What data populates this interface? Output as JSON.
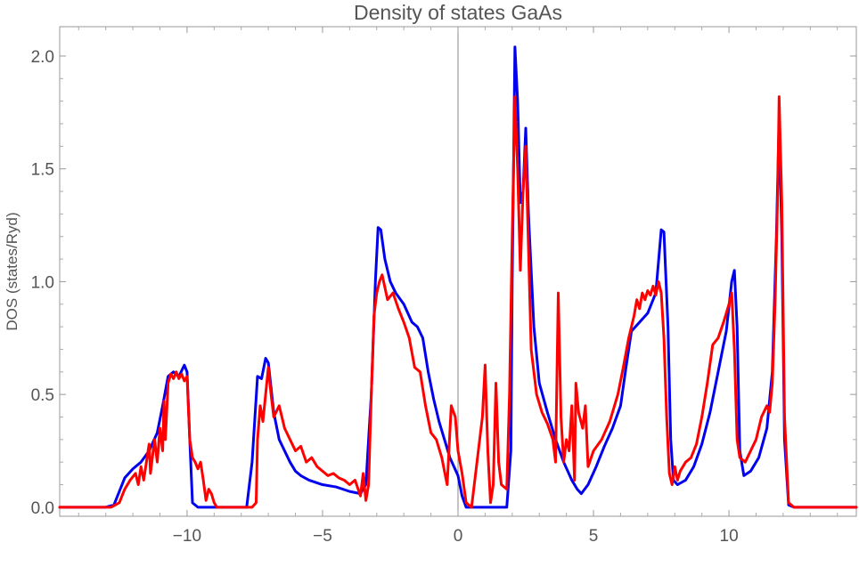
{
  "chart_data": {
    "type": "line",
    "title": "Density of states GaAs",
    "xlabel": "",
    "ylabel": "DOS (states/Ryd)",
    "xlim": [
      -14.7,
      14.7
    ],
    "ylim": [
      -0.04,
      2.13
    ],
    "x_ticks": [
      -10,
      -5,
      0,
      5,
      10
    ],
    "x_tick_labels": [
      "−10",
      "−5",
      "0",
      "5",
      "10"
    ],
    "y_ticks": [
      0.0,
      0.5,
      1.0,
      1.5,
      2.0
    ],
    "y_tick_labels": [
      "0.0",
      "0.5",
      "1.0",
      "1.5",
      "2.0"
    ],
    "grid": false,
    "legend": "none",
    "series": [
      {
        "color": "#0000ee",
        "points": [
          [
            -14.7,
            0.0
          ],
          [
            -13.0,
            0.0
          ],
          [
            -12.7,
            0.01
          ],
          [
            -12.5,
            0.07
          ],
          [
            -12.3,
            0.13
          ],
          [
            -12.0,
            0.17
          ],
          [
            -11.7,
            0.2
          ],
          [
            -11.4,
            0.25
          ],
          [
            -11.1,
            0.33
          ],
          [
            -10.9,
            0.45
          ],
          [
            -10.7,
            0.58
          ],
          [
            -10.5,
            0.6
          ],
          [
            -10.3,
            0.58
          ],
          [
            -10.1,
            0.63
          ],
          [
            -10.0,
            0.6
          ],
          [
            -9.9,
            0.3
          ],
          [
            -9.8,
            0.02
          ],
          [
            -9.6,
            0.0
          ],
          [
            -7.8,
            0.0
          ],
          [
            -7.6,
            0.2
          ],
          [
            -7.4,
            0.58
          ],
          [
            -7.25,
            0.57
          ],
          [
            -7.1,
            0.66
          ],
          [
            -7.0,
            0.64
          ],
          [
            -6.8,
            0.42
          ],
          [
            -6.6,
            0.3
          ],
          [
            -6.4,
            0.25
          ],
          [
            -6.2,
            0.2
          ],
          [
            -6.0,
            0.16
          ],
          [
            -5.8,
            0.14
          ],
          [
            -5.5,
            0.12
          ],
          [
            -5.0,
            0.1
          ],
          [
            -4.5,
            0.09
          ],
          [
            -4.0,
            0.07
          ],
          [
            -3.6,
            0.06
          ],
          [
            -3.4,
            0.1
          ],
          [
            -3.2,
            0.5
          ],
          [
            -3.05,
            1.0
          ],
          [
            -2.95,
            1.24
          ],
          [
            -2.85,
            1.23
          ],
          [
            -2.7,
            1.1
          ],
          [
            -2.5,
            1.0
          ],
          [
            -2.3,
            0.95
          ],
          [
            -2.0,
            0.9
          ],
          [
            -1.7,
            0.82
          ],
          [
            -1.5,
            0.8
          ],
          [
            -1.3,
            0.75
          ],
          [
            -1.1,
            0.6
          ],
          [
            -0.9,
            0.48
          ],
          [
            -0.7,
            0.38
          ],
          [
            -0.5,
            0.3
          ],
          [
            -0.3,
            0.22
          ],
          [
            0.0,
            0.14
          ],
          [
            0.15,
            0.05
          ],
          [
            0.3,
            0.0
          ],
          [
            1.8,
            0.0
          ],
          [
            1.95,
            0.25
          ],
          [
            2.0,
            1.0
          ],
          [
            2.1,
            2.04
          ],
          [
            2.2,
            1.8
          ],
          [
            2.3,
            1.35
          ],
          [
            2.4,
            1.4
          ],
          [
            2.5,
            1.68
          ],
          [
            2.6,
            1.3
          ],
          [
            2.8,
            0.8
          ],
          [
            3.0,
            0.55
          ],
          [
            3.3,
            0.42
          ],
          [
            3.6,
            0.3
          ],
          [
            3.9,
            0.2
          ],
          [
            4.2,
            0.12
          ],
          [
            4.4,
            0.08
          ],
          [
            4.55,
            0.06
          ],
          [
            4.8,
            0.1
          ],
          [
            5.1,
            0.18
          ],
          [
            5.4,
            0.27
          ],
          [
            5.7,
            0.35
          ],
          [
            6.0,
            0.45
          ],
          [
            6.2,
            0.62
          ],
          [
            6.4,
            0.78
          ],
          [
            6.7,
            0.82
          ],
          [
            7.0,
            0.86
          ],
          [
            7.3,
            0.95
          ],
          [
            7.5,
            1.23
          ],
          [
            7.6,
            1.22
          ],
          [
            7.75,
            0.8
          ],
          [
            7.85,
            0.3
          ],
          [
            7.95,
            0.12
          ],
          [
            8.1,
            0.1
          ],
          [
            8.4,
            0.12
          ],
          [
            8.7,
            0.18
          ],
          [
            9.0,
            0.28
          ],
          [
            9.3,
            0.42
          ],
          [
            9.6,
            0.6
          ],
          [
            9.9,
            0.78
          ],
          [
            10.1,
            1.0
          ],
          [
            10.2,
            1.05
          ],
          [
            10.3,
            0.8
          ],
          [
            10.4,
            0.25
          ],
          [
            10.55,
            0.14
          ],
          [
            10.8,
            0.16
          ],
          [
            11.1,
            0.22
          ],
          [
            11.4,
            0.35
          ],
          [
            11.6,
            0.6
          ],
          [
            11.75,
            1.2
          ],
          [
            11.85,
            1.72
          ],
          [
            11.95,
            1.2
          ],
          [
            12.05,
            0.3
          ],
          [
            12.2,
            0.01
          ],
          [
            12.4,
            0.0
          ],
          [
            14.7,
            0.0
          ]
        ]
      },
      {
        "color": "#ff0000",
        "points": [
          [
            -14.7,
            0.0
          ],
          [
            -12.8,
            0.0
          ],
          [
            -12.5,
            0.02
          ],
          [
            -12.3,
            0.08
          ],
          [
            -12.1,
            0.12
          ],
          [
            -11.9,
            0.15
          ],
          [
            -11.8,
            0.1
          ],
          [
            -11.7,
            0.18
          ],
          [
            -11.6,
            0.12
          ],
          [
            -11.5,
            0.2
          ],
          [
            -11.4,
            0.28
          ],
          [
            -11.35,
            0.15
          ],
          [
            -11.2,
            0.3
          ],
          [
            -11.1,
            0.2
          ],
          [
            -11.0,
            0.35
          ],
          [
            -10.9,
            0.25
          ],
          [
            -10.85,
            0.47
          ],
          [
            -10.8,
            0.3
          ],
          [
            -10.7,
            0.55
          ],
          [
            -10.6,
            0.59
          ],
          [
            -10.5,
            0.57
          ],
          [
            -10.4,
            0.6
          ],
          [
            -10.3,
            0.57
          ],
          [
            -10.2,
            0.59
          ],
          [
            -10.1,
            0.56
          ],
          [
            -10.0,
            0.58
          ],
          [
            -9.9,
            0.3
          ],
          [
            -9.8,
            0.22
          ],
          [
            -9.7,
            0.2
          ],
          [
            -9.6,
            0.17
          ],
          [
            -9.5,
            0.2
          ],
          [
            -9.4,
            0.12
          ],
          [
            -9.3,
            0.03
          ],
          [
            -9.2,
            0.08
          ],
          [
            -9.1,
            0.06
          ],
          [
            -9.0,
            0.02
          ],
          [
            -8.9,
            0.0
          ],
          [
            -7.6,
            0.0
          ],
          [
            -7.45,
            0.02
          ],
          [
            -7.4,
            0.3
          ],
          [
            -7.3,
            0.45
          ],
          [
            -7.2,
            0.38
          ],
          [
            -7.1,
            0.5
          ],
          [
            -7.0,
            0.62
          ],
          [
            -6.9,
            0.5
          ],
          [
            -6.8,
            0.4
          ],
          [
            -6.6,
            0.45
          ],
          [
            -6.4,
            0.35
          ],
          [
            -6.2,
            0.3
          ],
          [
            -6.0,
            0.25
          ],
          [
            -5.8,
            0.27
          ],
          [
            -5.6,
            0.2
          ],
          [
            -5.4,
            0.22
          ],
          [
            -5.2,
            0.18
          ],
          [
            -5.0,
            0.16
          ],
          [
            -4.8,
            0.14
          ],
          [
            -4.6,
            0.15
          ],
          [
            -4.4,
            0.13
          ],
          [
            -4.2,
            0.12
          ],
          [
            -4.0,
            0.1
          ],
          [
            -3.8,
            0.12
          ],
          [
            -3.6,
            0.05
          ],
          [
            -3.5,
            0.15
          ],
          [
            -3.4,
            0.03
          ],
          [
            -3.3,
            0.1
          ],
          [
            -3.2,
            0.5
          ],
          [
            -3.1,
            0.85
          ],
          [
            -3.0,
            0.95
          ],
          [
            -2.9,
            1.0
          ],
          [
            -2.8,
            1.03
          ],
          [
            -2.6,
            0.92
          ],
          [
            -2.4,
            0.95
          ],
          [
            -2.2,
            0.88
          ],
          [
            -2.0,
            0.82
          ],
          [
            -1.8,
            0.75
          ],
          [
            -1.6,
            0.62
          ],
          [
            -1.4,
            0.6
          ],
          [
            -1.2,
            0.45
          ],
          [
            -1.0,
            0.33
          ],
          [
            -0.8,
            0.3
          ],
          [
            -0.6,
            0.22
          ],
          [
            -0.4,
            0.1
          ],
          [
            -0.25,
            0.45
          ],
          [
            -0.1,
            0.4
          ],
          [
            0.0,
            0.25
          ],
          [
            0.15,
            0.15
          ],
          [
            0.3,
            0.02
          ],
          [
            0.5,
            0.0
          ],
          [
            0.7,
            0.2
          ],
          [
            0.9,
            0.4
          ],
          [
            1.0,
            0.63
          ],
          [
            1.1,
            0.25
          ],
          [
            1.2,
            0.02
          ],
          [
            1.3,
            0.1
          ],
          [
            1.4,
            0.55
          ],
          [
            1.5,
            0.2
          ],
          [
            1.6,
            0.1
          ],
          [
            1.8,
            0.08
          ],
          [
            1.9,
            0.5
          ],
          [
            2.0,
            1.2
          ],
          [
            2.1,
            1.82
          ],
          [
            2.2,
            1.5
          ],
          [
            2.3,
            1.05
          ],
          [
            2.4,
            1.4
          ],
          [
            2.5,
            1.6
          ],
          [
            2.6,
            1.15
          ],
          [
            2.7,
            0.7
          ],
          [
            2.9,
            0.5
          ],
          [
            3.1,
            0.42
          ],
          [
            3.3,
            0.37
          ],
          [
            3.5,
            0.3
          ],
          [
            3.6,
            0.2
          ],
          [
            3.7,
            0.95
          ],
          [
            3.8,
            0.4
          ],
          [
            3.9,
            0.2
          ],
          [
            4.0,
            0.3
          ],
          [
            4.1,
            0.25
          ],
          [
            4.2,
            0.45
          ],
          [
            4.3,
            0.12
          ],
          [
            4.35,
            0.55
          ],
          [
            4.45,
            0.42
          ],
          [
            4.6,
            0.35
          ],
          [
            4.7,
            0.45
          ],
          [
            4.8,
            0.18
          ],
          [
            5.0,
            0.25
          ],
          [
            5.3,
            0.3
          ],
          [
            5.6,
            0.38
          ],
          [
            5.9,
            0.5
          ],
          [
            6.1,
            0.62
          ],
          [
            6.3,
            0.75
          ],
          [
            6.5,
            0.85
          ],
          [
            6.6,
            0.92
          ],
          [
            6.7,
            0.88
          ],
          [
            6.8,
            0.95
          ],
          [
            6.9,
            0.92
          ],
          [
            7.0,
            0.96
          ],
          [
            7.1,
            0.94
          ],
          [
            7.2,
            0.98
          ],
          [
            7.3,
            0.94
          ],
          [
            7.4,
            1.0
          ],
          [
            7.5,
            0.95
          ],
          [
            7.6,
            0.75
          ],
          [
            7.7,
            0.4
          ],
          [
            7.8,
            0.15
          ],
          [
            7.9,
            0.1
          ],
          [
            8.0,
            0.18
          ],
          [
            8.1,
            0.12
          ],
          [
            8.2,
            0.16
          ],
          [
            8.4,
            0.2
          ],
          [
            8.6,
            0.22
          ],
          [
            8.8,
            0.28
          ],
          [
            9.0,
            0.4
          ],
          [
            9.2,
            0.55
          ],
          [
            9.4,
            0.72
          ],
          [
            9.6,
            0.75
          ],
          [
            9.8,
            0.82
          ],
          [
            10.0,
            0.9
          ],
          [
            10.1,
            0.95
          ],
          [
            10.2,
            0.7
          ],
          [
            10.3,
            0.3
          ],
          [
            10.4,
            0.22
          ],
          [
            10.6,
            0.2
          ],
          [
            10.8,
            0.25
          ],
          [
            11.0,
            0.3
          ],
          [
            11.2,
            0.4
          ],
          [
            11.4,
            0.45
          ],
          [
            11.5,
            0.42
          ],
          [
            11.6,
            0.55
          ],
          [
            11.7,
            0.9
          ],
          [
            11.8,
            1.4
          ],
          [
            11.85,
            1.82
          ],
          [
            11.95,
            1.35
          ],
          [
            12.05,
            0.4
          ],
          [
            12.2,
            0.02
          ],
          [
            12.4,
            0.0
          ],
          [
            14.7,
            0.0
          ]
        ]
      }
    ]
  }
}
